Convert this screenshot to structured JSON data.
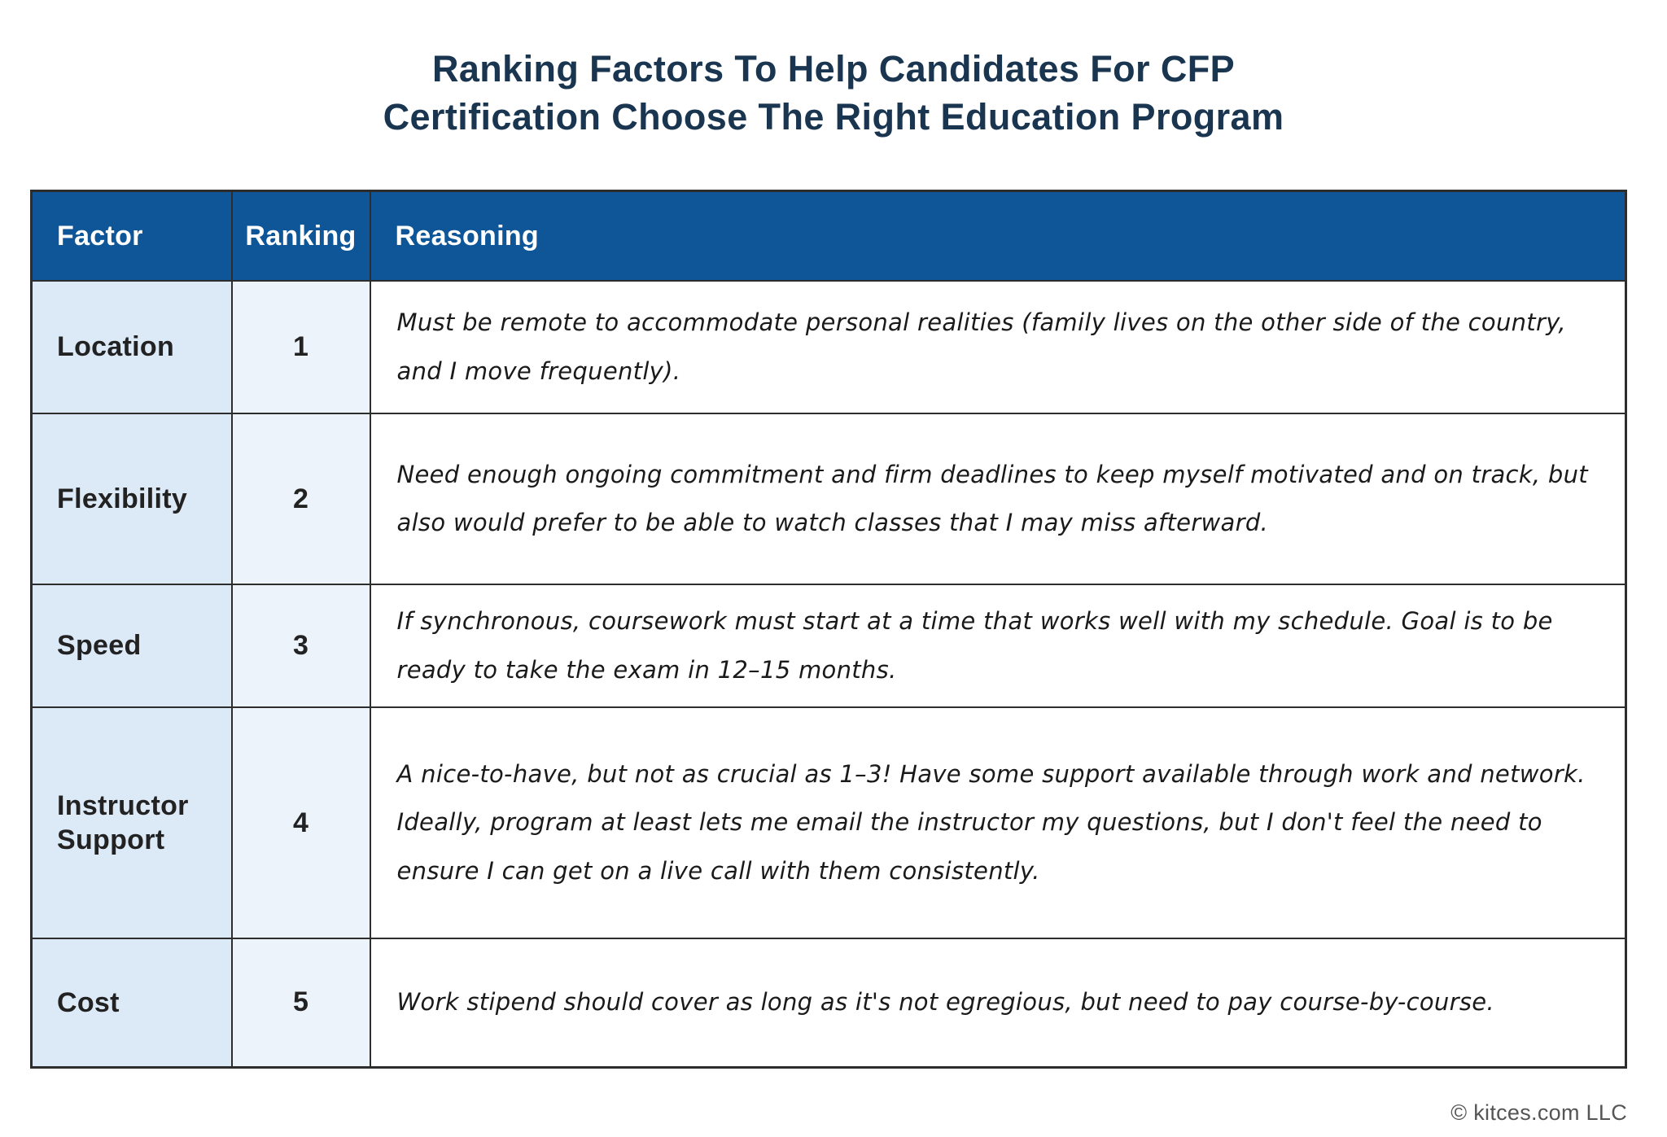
{
  "title": {
    "line1": "Ranking Factors To Help Candidates For CFP",
    "line2": "Certification Choose The Right Education Program"
  },
  "table": {
    "headers": {
      "factor": "Factor",
      "ranking": "Ranking",
      "reasoning": "Reasoning"
    },
    "rows": [
      {
        "factor": "Location",
        "ranking": "1",
        "reasoning": "Must be remote to accommodate personal realities (family lives on the other side of the country, and I move frequently)."
      },
      {
        "factor": "Flexibility",
        "ranking": "2",
        "reasoning": "Need enough ongoing commitment and firm deadlines to keep myself motivated and on track, but also would prefer to be able to watch classes that I may miss afterward."
      },
      {
        "factor": "Speed",
        "ranking": "3",
        "reasoning": "If synchronous, coursework must start at a time that works well with my schedule. Goal is to be ready to take the exam in 12–15 months."
      },
      {
        "factor": "Instructor Support",
        "ranking": "4",
        "reasoning": "A nice-to-have, but not as crucial as 1–3! Have some support available through work and network. Ideally, program at least lets me email the instructor my questions, but I don't feel the need to ensure I can get on a live call with them consistently."
      },
      {
        "factor": "Cost",
        "ranking": "5",
        "reasoning": "Work stipend should cover as long as it's not egregious, but need to pay course-by-course."
      }
    ]
  },
  "footer": {
    "copyright": "© kitces.com LLC"
  },
  "colors": {
    "header_bg": "#0F5699",
    "header_text": "#FFFFFF",
    "factor_cell_bg": "#DCE9F7",
    "ranking_cell_bg": "#EDF3FB",
    "title_text": "#1A3550",
    "border": "#2D2D2D",
    "body_text": "#222222",
    "handwriting_text": "#1A1A1A",
    "footer_text": "#555555"
  }
}
